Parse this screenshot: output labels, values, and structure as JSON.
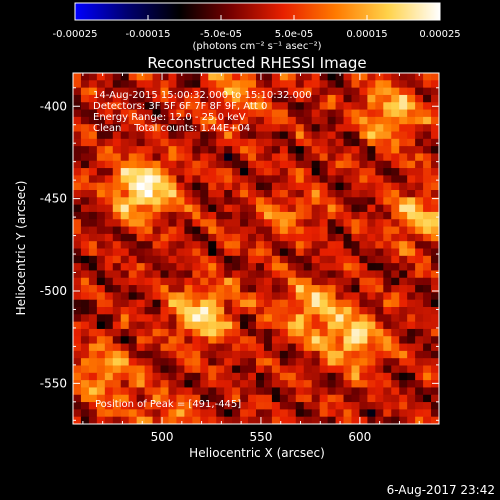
{
  "colors": {
    "background": "#000000",
    "foreground": "#ffffff"
  },
  "chart_data": {
    "type": "heatmap",
    "title": "Reconstructed RHESSI Image",
    "xlabel": "Heliocentric X (arcsec)",
    "ylabel": "Heliocentric Y (arcsec)",
    "xlim": [
      455,
      640
    ],
    "ylim": [
      -572,
      -382
    ],
    "x_ticks": [
      500,
      550,
      600
    ],
    "y_ticks": [
      -400,
      -450,
      -500,
      -550
    ],
    "colorbar": {
      "range": [
        -0.00025,
        0.00025
      ],
      "ticks": [
        {
          "value": -0.00025,
          "label": "-0.00025"
        },
        {
          "value": -0.00015,
          "label": "-0.00015"
        },
        {
          "value": -5e-05,
          "label": "-5.0e-05"
        },
        {
          "value": 5e-05,
          "label": "5.0e-05"
        },
        {
          "value": 0.00015,
          "label": "0.00015"
        },
        {
          "value": 0.00025,
          "label": "0.00025"
        }
      ],
      "unit_label": "(photons cm⁻² s⁻¹ asec⁻²)",
      "colormap": [
        "#0000ff",
        "#000070",
        "#000000",
        "#780000",
        "#e82000",
        "#ff7a00",
        "#ffd24a",
        "#ffffff"
      ]
    },
    "annotations": {
      "time": "14-Aug-2015 15:00:32.000 to 15:10:32.000",
      "detectors": "Detectors: 3F 5F 6F 7F 8F 9F, Att 0",
      "energy": "Energy Range: 12.0 - 25.0 keV",
      "clean": "Clean    Total counts: 1.44E+04",
      "peak": "Position of Peak = [491,-445]"
    },
    "peak_position": [
      491,
      -445
    ],
    "total_counts": 14400,
    "energy_range_kev": [
      12.0,
      25.0
    ],
    "grid_resolution": [
      46,
      48
    ],
    "value_range": [
      0.0,
      0.00025
    ],
    "sources": [
      {
        "x": 491,
        "y": -445,
        "value": 0.00025
      },
      {
        "x": 520,
        "y": -513,
        "value": 0.00019
      },
      {
        "x": 597,
        "y": -527,
        "value": 0.00017
      },
      {
        "x": 575,
        "y": -510,
        "value": 0.00015
      },
      {
        "x": 615,
        "y": -405,
        "value": 0.00016
      },
      {
        "x": 630,
        "y": -460,
        "value": 0.00014
      },
      {
        "x": 470,
        "y": -545,
        "value": 0.00013
      },
      {
        "x": 537,
        "y": -392,
        "value": 0.00011
      },
      {
        "x": 500,
        "y": -570,
        "value": 0.0001
      },
      {
        "x": 565,
        "y": -458,
        "value": 8e-05
      }
    ]
  },
  "footer": {
    "timestamp": "6-Aug-2017 23:42"
  }
}
